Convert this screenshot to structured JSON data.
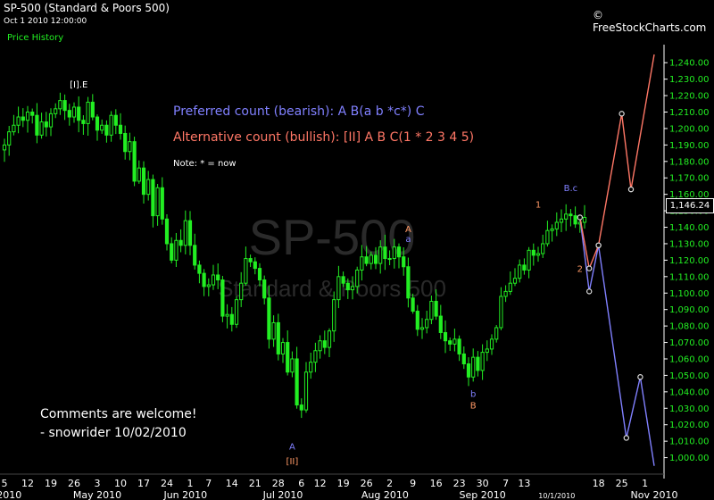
{
  "header": {
    "title": "SP-500 (Standard & Poors 500)",
    "datetime": "Oct 1 2010 12:00:00",
    "tab": "Price History",
    "source": "© FreeStockCharts.com"
  },
  "watermark": {
    "symbol": "SP-500",
    "name": "Standard & Poors 500"
  },
  "price_badge": "1,146.24",
  "colors": {
    "candle": "#22ee22",
    "preferred": "#8080ff",
    "alternative": "#ff7766",
    "count_orange": "#ff9966",
    "text": "#ffffff",
    "axis": "#ffffff",
    "watermark": "#2a2a2a"
  },
  "chart_data": {
    "type": "candlestick",
    "y_axis": {
      "min": 990,
      "max": 1245,
      "ticks": [
        1000,
        1010,
        1020,
        1030,
        1040,
        1050,
        1060,
        1070,
        1080,
        1090,
        1100,
        1110,
        1120,
        1130,
        1140,
        1150,
        1160,
        1170,
        1180,
        1190,
        1200,
        1210,
        1220,
        1230,
        1240
      ],
      "tick_labels": [
        "1,000.00",
        "1,010.00",
        "1,020.00",
        "1,030.00",
        "1,040.00",
        "1,050.00",
        "1,060.00",
        "1,070.00",
        "1,080.00",
        "1,090.00",
        "1,100.00",
        "1,110.00",
        "1,120.00",
        "1,130.00",
        "1,140.00",
        "1,150.00",
        "1,160.00",
        "1,170.00",
        "1,180.00",
        "1,190.00",
        "1,200.00",
        "1,210.00",
        "1,220.00",
        "1,230.00",
        "1,240.00"
      ]
    },
    "x_axis": {
      "day_labels": [
        "5",
        "12",
        "19",
        "26",
        "3",
        "10",
        "17",
        "24",
        "1",
        "7",
        "14",
        "21",
        "28",
        "6",
        "12",
        "19",
        "26",
        "2",
        "9",
        "16",
        "23",
        "30",
        "7",
        "13",
        "18",
        "25",
        "1"
      ],
      "day_label_slots": [
        0,
        5,
        10,
        15,
        20,
        25,
        30,
        35,
        40,
        44,
        49,
        54,
        59,
        64,
        68,
        73,
        78,
        83,
        88,
        93,
        98,
        103,
        108,
        112,
        128,
        133,
        138
      ],
      "month_labels": [
        "2010",
        "May 2010",
        "Jun 2010",
        "Jul 2010",
        "Aug 2010",
        "Sep 2010",
        "10/1/2010",
        "Nov 2010"
      ],
      "month_label_slots": [
        1,
        20,
        39,
        60,
        82,
        103,
        119,
        140
      ]
    },
    "closes": [
      1190,
      1198,
      1202,
      1207,
      1205,
      1210,
      1208,
      1196,
      1204,
      1201,
      1209,
      1212,
      1217,
      1211,
      1207,
      1213,
      1205,
      1203,
      1216,
      1207,
      1199,
      1202,
      1196,
      1208,
      1202,
      1197,
      1186,
      1192,
      1168,
      1176,
      1160,
      1169,
      1147,
      1164,
      1145,
      1130,
      1120,
      1132,
      1129,
      1144,
      1129,
      1117,
      1112,
      1104,
      1105,
      1111,
      1108,
      1086,
      1087,
      1081,
      1096,
      1106,
      1121,
      1119,
      1115,
      1108,
      1097,
      1072,
      1082,
      1063,
      1070,
      1052,
      1060,
      1032,
      1029,
      1052,
      1058,
      1065,
      1071,
      1067,
      1077,
      1096,
      1110,
      1106,
      1102,
      1104,
      1114,
      1122,
      1118,
      1123,
      1118,
      1128,
      1121,
      1121,
      1128,
      1122,
      1116,
      1097,
      1089,
      1078,
      1079,
      1084,
      1095,
      1086,
      1076,
      1071,
      1069,
      1072,
      1063,
      1057,
      1049,
      1061,
      1053,
      1064,
      1066,
      1072,
      1079,
      1098,
      1101,
      1106,
      1109,
      1117,
      1114,
      1126,
      1123,
      1124,
      1130,
      1138,
      1139,
      1143,
      1145,
      1148,
      1147,
      1142,
      1143,
      1146
    ],
    "preferred_projection": {
      "label": "Preferred count (bearish):  A B(a b *c*) C",
      "points": [
        [
          124,
          1146
        ],
        [
          126,
          1101
        ],
        [
          128,
          1129
        ],
        [
          134,
          1012
        ],
        [
          137,
          1049
        ],
        [
          140,
          995
        ]
      ]
    },
    "alternative_projection": {
      "label": "Alternative count (bullish): [II] A B C(1 * 2 3 4 5)",
      "points": [
        [
          124,
          1146
        ],
        [
          126,
          1115
        ],
        [
          128,
          1129
        ],
        [
          133,
          1209
        ],
        [
          135,
          1163
        ],
        [
          140,
          1245
        ]
      ]
    },
    "note": "Note:  * = now",
    "annotations": [
      {
        "text": "[I].E",
        "slot": 16,
        "price": 1225,
        "color": "white"
      },
      {
        "text": "A",
        "slot": 87,
        "price": 1137,
        "color": "orange"
      },
      {
        "text": "a",
        "slot": 87,
        "price": 1131,
        "color": "blue"
      },
      {
        "text": "1",
        "slot": 115,
        "price": 1152,
        "color": "orange"
      },
      {
        "text": "B.c",
        "slot": 122,
        "price": 1162,
        "color": "blue"
      },
      {
        "text": "2",
        "slot": 124,
        "price": 1113,
        "color": "orange"
      },
      {
        "text": "b",
        "slot": 101,
        "price": 1037,
        "color": "blue"
      },
      {
        "text": "B",
        "slot": 101,
        "price": 1030,
        "color": "orange"
      },
      {
        "text": "A",
        "slot": 62,
        "price": 1005,
        "color": "blue"
      },
      {
        "text": "[II]",
        "slot": 62,
        "price": 996,
        "color": "orange"
      }
    ]
  },
  "comments": {
    "line1": "Comments are welcome!",
    "line2": "- snowrider  10/02/2010"
  }
}
